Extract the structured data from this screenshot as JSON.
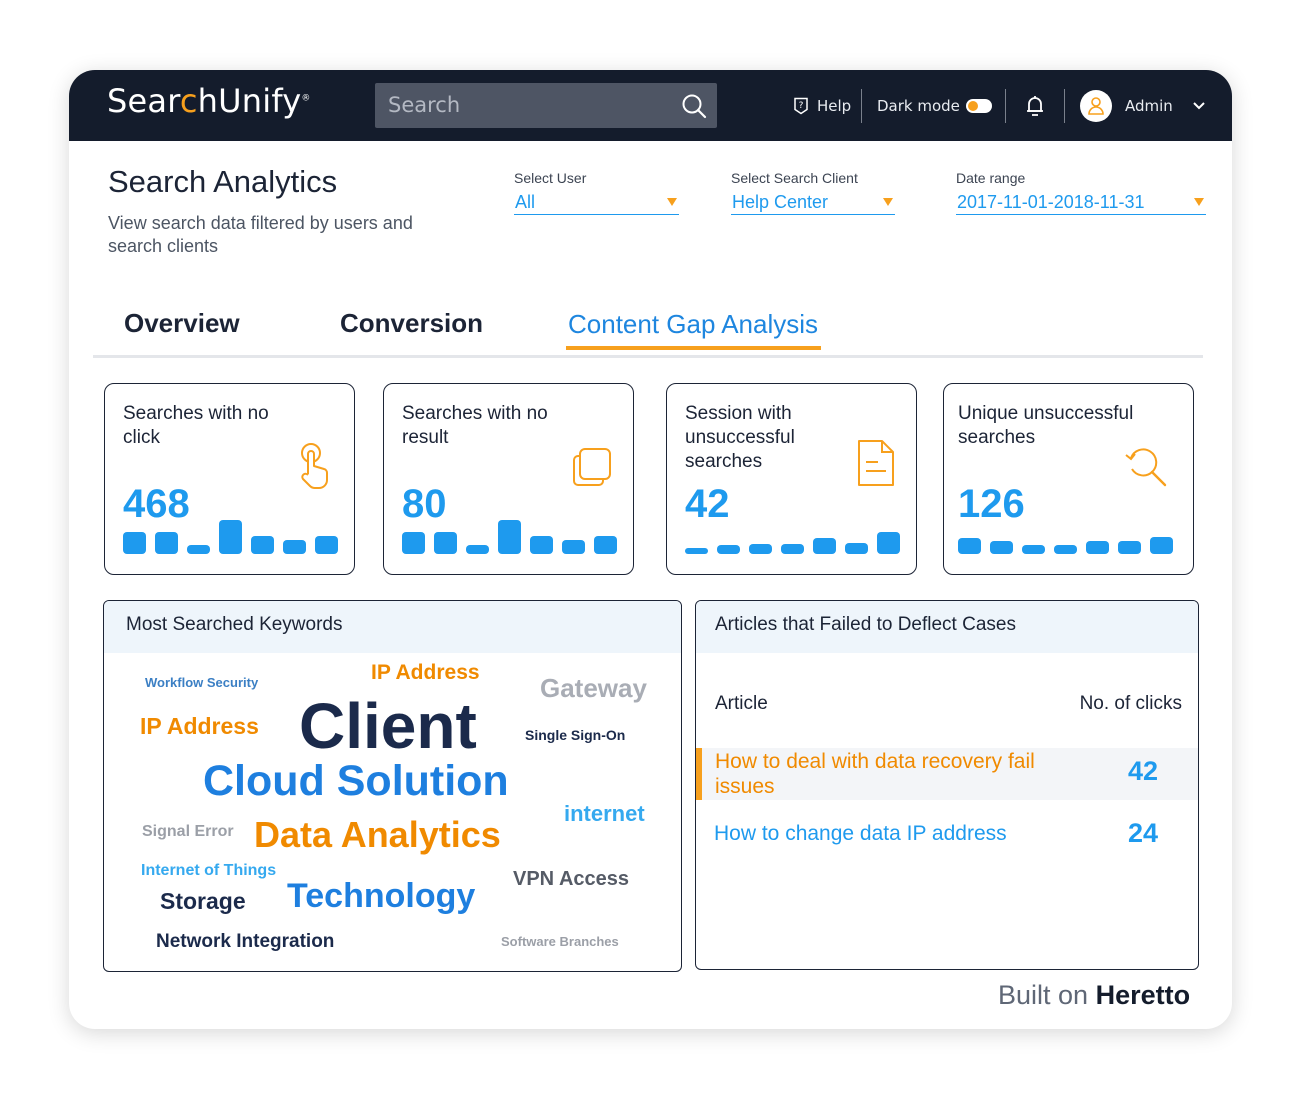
{
  "header": {
    "logo_pre": "Sear",
    "logo_mark": "c",
    "logo_post": "hUnify",
    "logo_reg": "®",
    "search_placeholder": "Search",
    "help_label": "Help",
    "dark_mode_label": "Dark mode",
    "user_name": "Admin"
  },
  "page": {
    "title": "Search Analytics",
    "subtitle": "View search data filtered by users and search clients"
  },
  "filters": [
    {
      "label": "Select User",
      "value": "All"
    },
    {
      "label": "Select Search Client",
      "value": "Help Center"
    },
    {
      "label": "Date range",
      "value": "2017-11-01-2018-11-31"
    }
  ],
  "tabs": [
    {
      "label": "Overview"
    },
    {
      "label": "Conversion"
    },
    {
      "label": "Content Gap Analysis",
      "active": true
    }
  ],
  "cards": [
    {
      "title": "Searches with no click",
      "value": "468",
      "icon": "tap-hand-icon"
    },
    {
      "title": "Searches with no result",
      "value": "80",
      "icon": "copy-squares-icon"
    },
    {
      "title": "Session with unsuccessful searches",
      "value": "42",
      "icon": "document-icon"
    },
    {
      "title": "Unique unsuccessful searches",
      "value": "126",
      "icon": "search-refresh-icon"
    }
  ],
  "keywords_panel": {
    "title": "Most Searched Keywords",
    "words": [
      {
        "text": "Workflow Security"
      },
      {
        "text": "IP Address"
      },
      {
        "text": "Gateway"
      },
      {
        "text": "IP Address"
      },
      {
        "text": "Client"
      },
      {
        "text": "Single Sign-On"
      },
      {
        "text": "Cloud Solution"
      },
      {
        "text": "internet"
      },
      {
        "text": "Signal Error"
      },
      {
        "text": "Data Analytics"
      },
      {
        "text": "Internet of Things"
      },
      {
        "text": "VPN Access"
      },
      {
        "text": "Storage"
      },
      {
        "text": "Technology"
      },
      {
        "text": "Network Integration"
      },
      {
        "text": "Software Branches"
      }
    ]
  },
  "articles_panel": {
    "title": "Articles that Failed to Deflect Cases",
    "col_article": "Article",
    "col_clicks": "No. of clicks",
    "rows": [
      {
        "article": "How to deal with data recovery fail issues",
        "clicks": "42"
      },
      {
        "article": "How to change data IP address",
        "clicks": "24"
      }
    ]
  },
  "footer": {
    "built_on": "Built on",
    "brand": "Heretto"
  },
  "colors": {
    "accent_blue": "#1e9aee",
    "accent_orange": "#f7a01d",
    "header_bg": "#141c2c"
  }
}
